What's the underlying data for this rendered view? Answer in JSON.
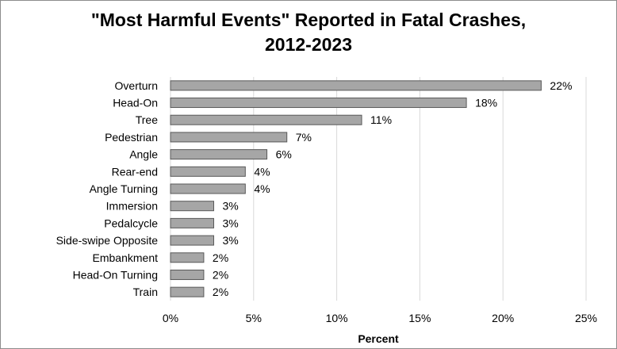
{
  "chart_data": {
    "type": "bar",
    "orientation": "horizontal",
    "title_lines": [
      "\"Most Harmful Events\" Reported in Fatal Crashes,",
      "2012-2023"
    ],
    "xlabel": "Percent",
    "ylabel": "",
    "categories": [
      "Overturn",
      "Head-On",
      "Tree",
      "Pedestrian",
      "Angle",
      "Rear-end",
      "Angle Turning",
      "Immersion",
      "Pedalcycle",
      "Side-swipe Opposite",
      "Embankment",
      "Head-On Turning",
      "Train"
    ],
    "values": [
      22.3,
      17.8,
      11.5,
      7.0,
      5.8,
      4.5,
      4.5,
      2.6,
      2.6,
      2.6,
      2.0,
      2.0,
      2.0
    ],
    "data_labels": [
      "22%",
      "18%",
      "11%",
      "7%",
      "6%",
      "4%",
      "4%",
      "3%",
      "3%",
      "3%",
      "2%",
      "2%",
      "2%"
    ],
    "xlim": [
      0,
      25
    ],
    "xticks": [
      0,
      5,
      10,
      15,
      20,
      25
    ],
    "xtick_labels": [
      "0%",
      "5%",
      "10%",
      "15%",
      "20%",
      "25%"
    ],
    "grid": "vertical",
    "legend": "none",
    "bar_color": "#a6a6a6",
    "bar_edge_color": "#595959",
    "grid_color": "#d9d9d9"
  }
}
